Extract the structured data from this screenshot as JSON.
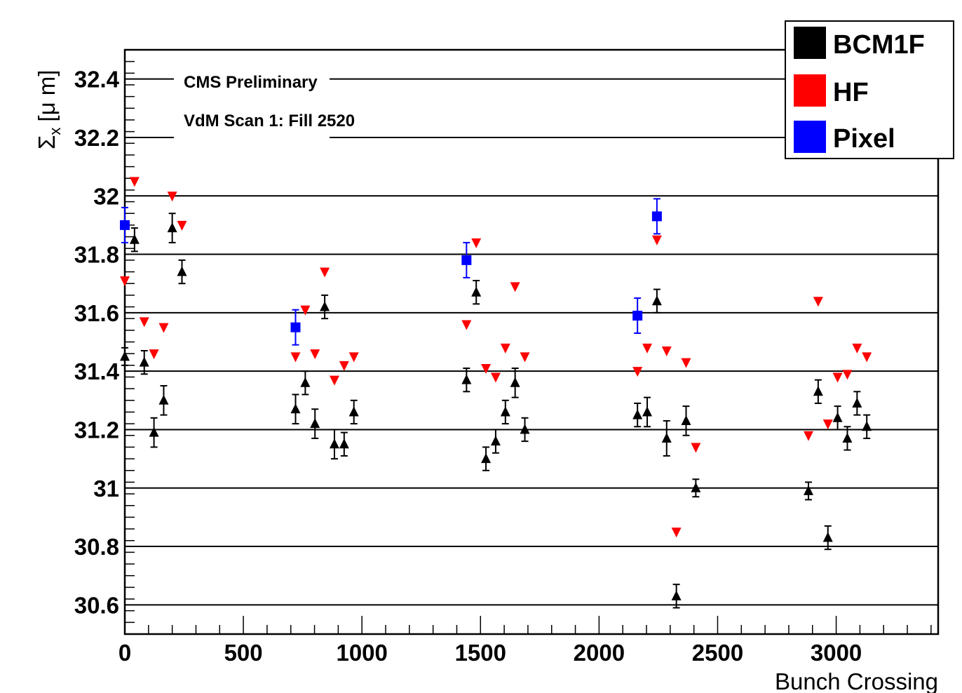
{
  "chart_data": {
    "type": "scatter",
    "xlabel": "Bunch Crossing",
    "ylabel": "Σ",
    "ylabel_sub": "x",
    "ylabel_unit": "[μ m]",
    "xlim": [
      0,
      3430
    ],
    "ylim": [
      30.5,
      32.5
    ],
    "x_ticks": [
      0,
      500,
      1000,
      1500,
      2000,
      2500,
      3000
    ],
    "x_tick_labels": [
      "0",
      "500",
      "1000",
      "1500",
      "2000",
      "2500",
      "3000"
    ],
    "y_ticks": [
      30.6,
      30.8,
      31.0,
      31.2,
      31.4,
      31.6,
      31.8,
      32.0,
      32.2,
      32.4
    ],
    "y_tick_labels": [
      "30.6",
      "30.8",
      "31",
      "31.2",
      "31.4",
      "31.6",
      "31.8",
      "32",
      "32.2",
      "32.4"
    ],
    "grid": true,
    "annotations": [
      "CMS Preliminary",
      "VdM Scan 1: Fill 2520"
    ],
    "legend": {
      "position": "top-right"
    },
    "series": [
      {
        "name": "BCM1F",
        "color": "#000000",
        "marker": "triangle-up",
        "points": [
          {
            "x": 0,
            "y": 31.45,
            "err": 0.03
          },
          {
            "x": 41,
            "y": 31.85,
            "err": 0.04
          },
          {
            "x": 82,
            "y": 31.43,
            "err": 0.04
          },
          {
            "x": 123,
            "y": 31.19,
            "err": 0.05
          },
          {
            "x": 164,
            "y": 31.3,
            "err": 0.05
          },
          {
            "x": 200,
            "y": 31.89,
            "err": 0.05
          },
          {
            "x": 241,
            "y": 31.74,
            "err": 0.04
          },
          {
            "x": 720,
            "y": 31.27,
            "err": 0.05
          },
          {
            "x": 761,
            "y": 31.36,
            "err": 0.04
          },
          {
            "x": 802,
            "y": 31.22,
            "err": 0.05
          },
          {
            "x": 843,
            "y": 31.62,
            "err": 0.04
          },
          {
            "x": 884,
            "y": 31.15,
            "err": 0.05
          },
          {
            "x": 925,
            "y": 31.15,
            "err": 0.04
          },
          {
            "x": 966,
            "y": 31.26,
            "err": 0.04
          },
          {
            "x": 1441,
            "y": 31.37,
            "err": 0.04
          },
          {
            "x": 1482,
            "y": 31.67,
            "err": 0.04
          },
          {
            "x": 1523,
            "y": 31.1,
            "err": 0.04
          },
          {
            "x": 1564,
            "y": 31.16,
            "err": 0.04
          },
          {
            "x": 1605,
            "y": 31.26,
            "err": 0.04
          },
          {
            "x": 1646,
            "y": 31.36,
            "err": 0.05
          },
          {
            "x": 1687,
            "y": 31.2,
            "err": 0.04
          },
          {
            "x": 2162,
            "y": 31.25,
            "err": 0.04
          },
          {
            "x": 2203,
            "y": 31.26,
            "err": 0.05
          },
          {
            "x": 2244,
            "y": 31.64,
            "err": 0.04
          },
          {
            "x": 2285,
            "y": 31.17,
            "err": 0.06
          },
          {
            "x": 2326,
            "y": 30.63,
            "err": 0.04
          },
          {
            "x": 2367,
            "y": 31.23,
            "err": 0.05
          },
          {
            "x": 2408,
            "y": 31.0,
            "err": 0.03
          },
          {
            "x": 2883,
            "y": 30.99,
            "err": 0.03
          },
          {
            "x": 2924,
            "y": 31.33,
            "err": 0.04
          },
          {
            "x": 2965,
            "y": 30.83,
            "err": 0.04
          },
          {
            "x": 3006,
            "y": 31.24,
            "err": 0.04
          },
          {
            "x": 3047,
            "y": 31.17,
            "err": 0.04
          },
          {
            "x": 3088,
            "y": 31.29,
            "err": 0.04
          },
          {
            "x": 3129,
            "y": 31.21,
            "err": 0.04
          }
        ]
      },
      {
        "name": "HF",
        "color": "#ff0000",
        "marker": "triangle-down",
        "points": [
          {
            "x": 0,
            "y": 31.71
          },
          {
            "x": 41,
            "y": 32.05
          },
          {
            "x": 82,
            "y": 31.57
          },
          {
            "x": 123,
            "y": 31.46
          },
          {
            "x": 164,
            "y": 31.55
          },
          {
            "x": 200,
            "y": 32.0
          },
          {
            "x": 241,
            "y": 31.9
          },
          {
            "x": 720,
            "y": 31.45
          },
          {
            "x": 761,
            "y": 31.61
          },
          {
            "x": 802,
            "y": 31.46
          },
          {
            "x": 843,
            "y": 31.74
          },
          {
            "x": 884,
            "y": 31.37
          },
          {
            "x": 925,
            "y": 31.42
          },
          {
            "x": 966,
            "y": 31.45
          },
          {
            "x": 1441,
            "y": 31.56
          },
          {
            "x": 1482,
            "y": 31.84
          },
          {
            "x": 1523,
            "y": 31.41
          },
          {
            "x": 1564,
            "y": 31.38
          },
          {
            "x": 1605,
            "y": 31.48
          },
          {
            "x": 1646,
            "y": 31.69
          },
          {
            "x": 1687,
            "y": 31.45
          },
          {
            "x": 2162,
            "y": 31.4
          },
          {
            "x": 2203,
            "y": 31.48
          },
          {
            "x": 2244,
            "y": 31.85
          },
          {
            "x": 2285,
            "y": 31.47
          },
          {
            "x": 2326,
            "y": 30.85
          },
          {
            "x": 2367,
            "y": 31.43
          },
          {
            "x": 2408,
            "y": 31.14
          },
          {
            "x": 2883,
            "y": 31.18
          },
          {
            "x": 2924,
            "y": 31.64
          },
          {
            "x": 2965,
            "y": 31.22
          },
          {
            "x": 3006,
            "y": 31.38
          },
          {
            "x": 3047,
            "y": 31.39
          },
          {
            "x": 3088,
            "y": 31.48
          },
          {
            "x": 3129,
            "y": 31.45
          }
        ]
      },
      {
        "name": "Pixel",
        "color": "#0000ff",
        "marker": "square",
        "points": [
          {
            "x": 0,
            "y": 31.9,
            "err": 0.06
          },
          {
            "x": 720,
            "y": 31.55,
            "err": 0.06
          },
          {
            "x": 1441,
            "y": 31.78,
            "err": 0.06
          },
          {
            "x": 2162,
            "y": 31.59,
            "err": 0.06
          },
          {
            "x": 2244,
            "y": 31.93,
            "err": 0.06
          }
        ]
      }
    ]
  }
}
